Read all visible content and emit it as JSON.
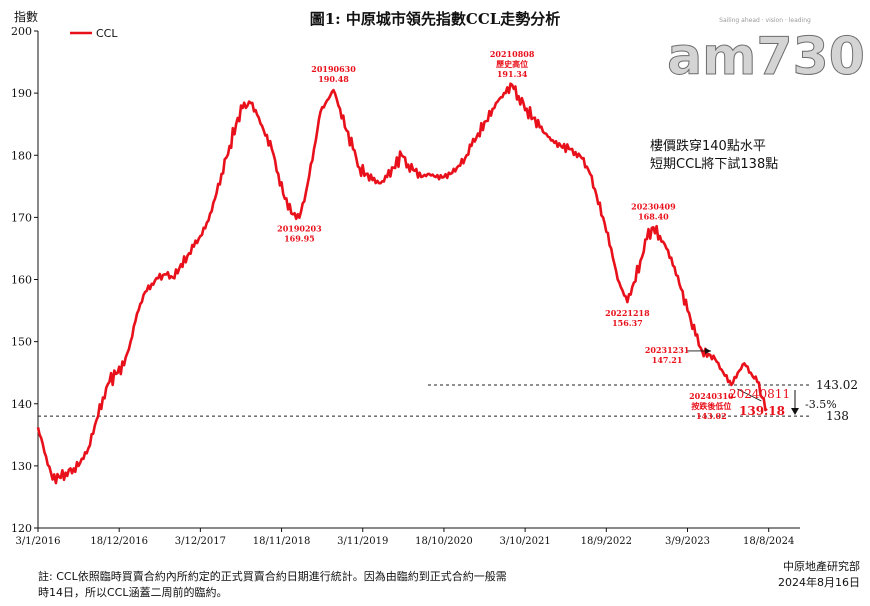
{
  "header": {
    "title": "圖1: 中原城市領先指數CCL走勢分析",
    "y_unit_label": "指數",
    "watermark": "am730",
    "watermark_tagline": "Sailing ahead · vision · leading"
  },
  "annotation_box": {
    "line1": "樓價跌穿140點水平",
    "line2": "短期CCL將下試138點"
  },
  "footer": {
    "note_line1": "註: CCL依照臨時買賣合約內所約定的正式買賣合約日期進行統計。因為由臨約到正式合約一般需",
    "note_line2": "時14日，所以CCL涵蓋二周前的臨約。",
    "source": "中原地產研究部",
    "date": "2024年8月16日"
  },
  "colors": {
    "line": "#e8101a",
    "text": "#111111",
    "background": "#ffffff"
  },
  "chart_data": {
    "type": "line",
    "title": "圖1: 中原城市領先指數CCL走勢分析",
    "ylabel": "指數",
    "xlabel": "",
    "ylim": [
      120,
      200
    ],
    "yticks": [
      120,
      130,
      140,
      150,
      160,
      170,
      180,
      190,
      200
    ],
    "xlim": [
      "2016-01-03",
      "2024-12-31"
    ],
    "xticks": [
      "3/1/2016",
      "18/12/2016",
      "3/12/2017",
      "18/11/2018",
      "3/11/2019",
      "18/10/2020",
      "3/10/2021",
      "18/9/2022",
      "3/9/2023",
      "18/8/2024"
    ],
    "grid": false,
    "legend": "top-left",
    "series": [
      {
        "name": "CCL",
        "color": "#e8101a",
        "points": [
          [
            "2016-01-03",
            136.2
          ],
          [
            "2016-02-07",
            131.5
          ],
          [
            "2016-03-06",
            127.8
          ],
          [
            "2016-04-03",
            128.2
          ],
          [
            "2016-05-01",
            128.9
          ],
          [
            "2016-06-05",
            129.6
          ],
          [
            "2016-07-03",
            130.5
          ],
          [
            "2016-08-07",
            132.8
          ],
          [
            "2016-09-04",
            136.5
          ],
          [
            "2016-10-09",
            141.0
          ],
          [
            "2016-11-06",
            143.5
          ],
          [
            "2016-12-04",
            144.8
          ],
          [
            "2017-01-08",
            146.2
          ],
          [
            "2017-02-05",
            150.0
          ],
          [
            "2017-03-05",
            154.5
          ],
          [
            "2017-04-09",
            158.0
          ],
          [
            "2017-05-07",
            159.3
          ],
          [
            "2017-06-04",
            160.2
          ],
          [
            "2017-07-09",
            160.8
          ],
          [
            "2017-08-06",
            160.3
          ],
          [
            "2017-09-03",
            161.8
          ],
          [
            "2017-10-08",
            163.8
          ],
          [
            "2017-11-05",
            165.3
          ],
          [
            "2017-12-03",
            167.0
          ],
          [
            "2018-01-07",
            169.5
          ],
          [
            "2018-02-04",
            173.0
          ],
          [
            "2018-03-04",
            177.0
          ],
          [
            "2018-04-08",
            181.5
          ],
          [
            "2018-05-06",
            185.0
          ],
          [
            "2018-06-03",
            187.6
          ],
          [
            "2018-07-08",
            188.4
          ],
          [
            "2018-08-05",
            186.5
          ],
          [
            "2018-09-02",
            184.0
          ],
          [
            "2018-10-07",
            181.0
          ],
          [
            "2018-11-04",
            177.0
          ],
          [
            "2018-12-02",
            173.0
          ],
          [
            "2019-01-06",
            170.5
          ],
          [
            "2019-02-03",
            169.95
          ],
          [
            "2019-03-03",
            174.0
          ],
          [
            "2019-04-07",
            181.0
          ],
          [
            "2019-05-05",
            187.0
          ],
          [
            "2019-06-30",
            190.48
          ],
          [
            "2019-07-28",
            187.5
          ],
          [
            "2019-08-25",
            184.0
          ],
          [
            "2019-09-22",
            181.0
          ],
          [
            "2019-10-20",
            178.0
          ],
          [
            "2019-11-17",
            177.0
          ],
          [
            "2019-12-15",
            176.0
          ],
          [
            "2020-01-19",
            175.5
          ],
          [
            "2020-02-16",
            176.5
          ],
          [
            "2020-03-15",
            178.0
          ],
          [
            "2020-04-19",
            180.0
          ],
          [
            "2020-05-17",
            178.5
          ],
          [
            "2020-06-14",
            177.5
          ],
          [
            "2020-07-12",
            176.5
          ],
          [
            "2020-08-16",
            177.0
          ],
          [
            "2020-09-13",
            176.5
          ],
          [
            "2020-10-18",
            176.5
          ],
          [
            "2020-11-15",
            177.0
          ],
          [
            "2020-12-13",
            178.0
          ],
          [
            "2021-01-17",
            179.5
          ],
          [
            "2021-02-14",
            181.5
          ],
          [
            "2021-03-14",
            183.5
          ],
          [
            "2021-04-18",
            185.5
          ],
          [
            "2021-05-16",
            187.5
          ],
          [
            "2021-06-13",
            189.0
          ],
          [
            "2021-07-11",
            190.0
          ],
          [
            "2021-08-08",
            191.34
          ],
          [
            "2021-09-05",
            189.5
          ],
          [
            "2021-10-10",
            187.5
          ],
          [
            "2021-11-07",
            186.0
          ],
          [
            "2021-12-05",
            184.5
          ],
          [
            "2022-01-09",
            183.0
          ],
          [
            "2022-02-06",
            182.0
          ],
          [
            "2022-03-06",
            181.5
          ],
          [
            "2022-04-10",
            181.0
          ],
          [
            "2022-05-08",
            180.5
          ],
          [
            "2022-06-05",
            179.5
          ],
          [
            "2022-07-10",
            177.0
          ],
          [
            "2022-08-07",
            173.5
          ],
          [
            "2022-09-04",
            170.0
          ],
          [
            "2022-10-09",
            165.0
          ],
          [
            "2022-11-06",
            160.0
          ],
          [
            "2022-12-18",
            156.37
          ],
          [
            "2023-01-15",
            159.5
          ],
          [
            "2023-02-12",
            163.0
          ],
          [
            "2023-03-12",
            166.5
          ],
          [
            "2023-04-09",
            168.4
          ],
          [
            "2023-05-07",
            167.0
          ],
          [
            "2023-06-04",
            165.0
          ],
          [
            "2023-07-09",
            162.0
          ],
          [
            "2023-08-06",
            158.5
          ],
          [
            "2023-09-03",
            155.0
          ],
          [
            "2023-10-08",
            151.0
          ],
          [
            "2023-11-05",
            148.5
          ],
          [
            "2023-12-31",
            147.21
          ],
          [
            "2024-01-28",
            145.5
          ],
          [
            "2024-03-10",
            143.02
          ],
          [
            "2024-04-07",
            145.0
          ],
          [
            "2024-05-05",
            146.5
          ],
          [
            "2024-06-02",
            145.0
          ],
          [
            "2024-06-30",
            143.5
          ],
          [
            "2024-07-21",
            141.0
          ],
          [
            "2024-08-11",
            139.18
          ]
        ]
      }
    ],
    "annotations": [
      {
        "label": "20190203",
        "value": "169.95",
        "date": "2019-02-03",
        "y": 169.95,
        "position": "below"
      },
      {
        "label": "20190630",
        "value": "190.48",
        "date": "2019-06-30",
        "y": 190.48,
        "position": "above"
      },
      {
        "label": "20210808",
        "label2": "歷史高位",
        "value": "191.34",
        "date": "2021-08-08",
        "y": 191.34,
        "position": "above"
      },
      {
        "label": "20221218",
        "value": "156.37",
        "date": "2022-12-18",
        "y": 156.37,
        "position": "below"
      },
      {
        "label": "20230409",
        "value": "168.40",
        "date": "2023-04-09",
        "y": 168.4,
        "position": "above"
      },
      {
        "label": "20231231",
        "value": "147.21",
        "date": "2023-12-31",
        "y": 147.21,
        "position": "left"
      },
      {
        "label": "20240310",
        "label2": "按跌後低位",
        "value": "143.02",
        "date": "2024-03-10",
        "y": 143.02,
        "position": "below"
      }
    ],
    "latest": {
      "label": "20240811",
      "value": "139.18"
    },
    "reference_lines": [
      {
        "y": 143.02,
        "label": "143.02",
        "style": "dashed"
      },
      {
        "y": 138,
        "label": "138",
        "style": "dashed"
      }
    ],
    "change_label": "-3.5%"
  }
}
